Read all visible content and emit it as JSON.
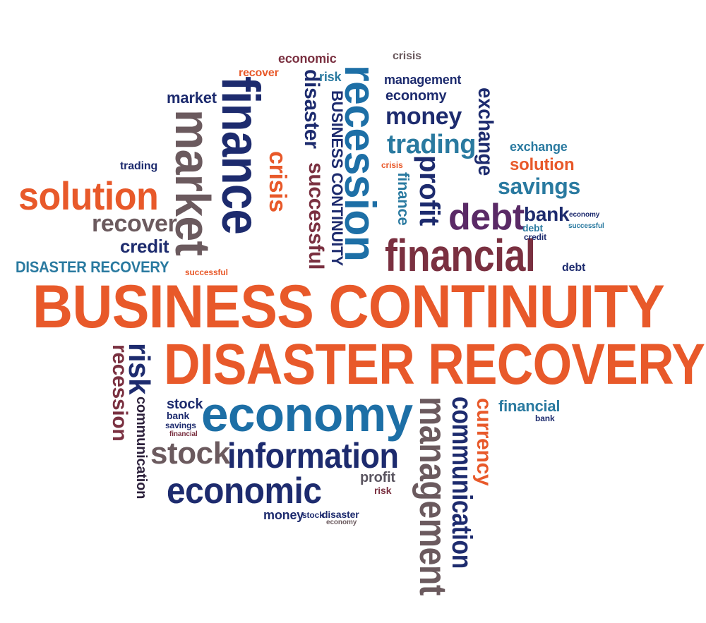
{
  "words": {
    "business_continuity": "BUSINESS CONTINUITY",
    "disaster_recovery": "DISASTER RECOVERY",
    "economy": "economy",
    "information": "information",
    "economic": "economic",
    "stock": "stock",
    "management": "management",
    "communication": "communication",
    "currency": "currency",
    "financial": "financial",
    "recession": "recession",
    "finance": "finance",
    "market": "market",
    "solution": "solution",
    "recover": "recover",
    "credit": "credit",
    "disaster_recovery_small": "DISASTER RECOVERY",
    "debt": "debt",
    "bank": "bank",
    "savings": "savings",
    "money": "money",
    "trading": "trading",
    "exchange": "exchange",
    "profit": "profit",
    "crisis": "crisis",
    "disaster": "disaster",
    "successful": "successful",
    "risk": "risk",
    "business_continuity_small": "BUSINESS CONTINUITY",
    "recession_small": "recession"
  },
  "colors": {
    "orange": "#e8592a",
    "navy": "#1d2b6e",
    "blue": "#1d6fa6",
    "teal": "#2a7aa0",
    "gray": "#6b5a5e",
    "burgundy": "#7a3040",
    "purple": "#5a2a66"
  }
}
